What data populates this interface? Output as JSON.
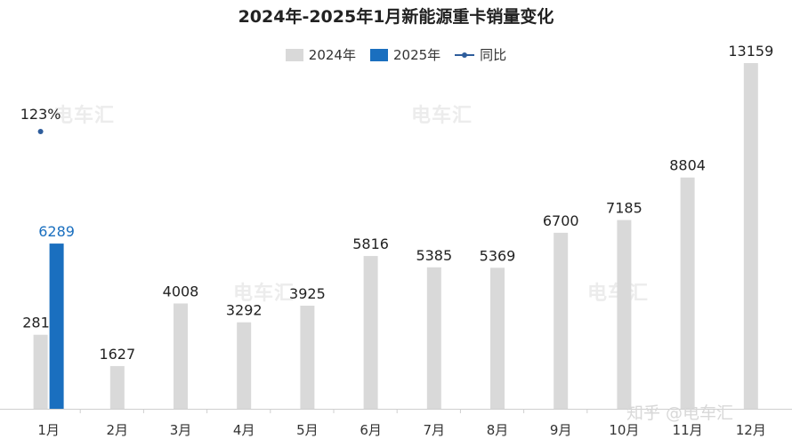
{
  "chart_data": {
    "type": "bar",
    "title": "2024年-2025年1月新能源重卡销量变化",
    "categories": [
      "1月",
      "2月",
      "3月",
      "4月",
      "5月",
      "6月",
      "7月",
      "8月",
      "9月",
      "10月",
      "11月",
      "12月"
    ],
    "series": [
      {
        "name": "2024年",
        "values": [
          2817,
          1627,
          4008,
          3292,
          3925,
          5816,
          5385,
          5369,
          6700,
          7185,
          8804,
          13159
        ],
        "color": "#d9d9d9"
      },
      {
        "name": "2025年",
        "values": [
          6289,
          null,
          null,
          null,
          null,
          null,
          null,
          null,
          null,
          null,
          null,
          null
        ],
        "color": "#1a6fbf"
      },
      {
        "name": "同比",
        "type": "line",
        "values": [
          123,
          null,
          null,
          null,
          null,
          null,
          null,
          null,
          null,
          null,
          null,
          null
        ],
        "labels": [
          "123%"
        ],
        "color": "#2e5d9c"
      }
    ],
    "ylim": [
      0,
      14000
    ],
    "grid": false,
    "legend": "top-center"
  },
  "watermarks": {
    "zhihu": "知乎 @电车汇",
    "logo": "电车汇"
  }
}
